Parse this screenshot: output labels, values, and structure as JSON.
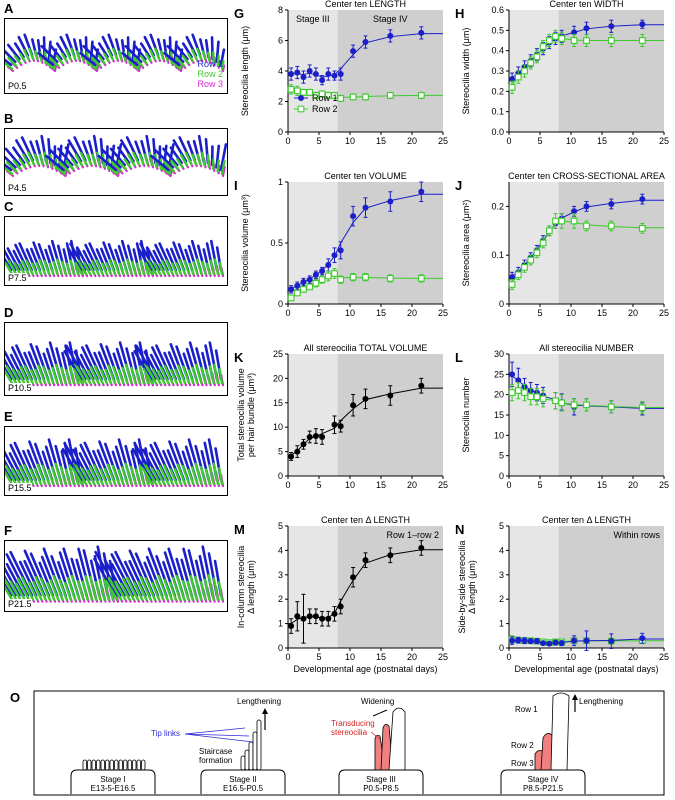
{
  "figure": {
    "left_panels": [
      {
        "letter": "A",
        "age": "P0.5",
        "legend": [
          "Row 1",
          "Row 2",
          "Row 3"
        ]
      },
      {
        "letter": "B",
        "age": "P4.5"
      },
      {
        "letter": "C",
        "age": "P7.5"
      },
      {
        "letter": "D",
        "age": "P10.5"
      },
      {
        "letter": "E",
        "age": "P15.5"
      },
      {
        "letter": "F",
        "age": "P21.5"
      }
    ],
    "colors": {
      "row1": "#1a1fc9",
      "row2": "#3ec92e",
      "row3": "#d42ad4",
      "stage3_shade": "#e6e6e6",
      "stage4_shade": "#cfcfcf",
      "tip_link": "#2b2bd6",
      "transducing": "#d61f1f",
      "stereocilia_fill": "#f08080"
    },
    "schematic": {
      "letter": "O",
      "stages": [
        {
          "name": "Stage I",
          "range": "E13-5-E16.5"
        },
        {
          "name": "Stage II",
          "range": "E16.5-P0.5"
        },
        {
          "name": "Stage III",
          "range": "P0.5-P8.5"
        },
        {
          "name": "Stage IV",
          "range": "P8.5-P21.5"
        }
      ],
      "labels": {
        "lengthening": "Lengthening",
        "tip_links": "Tip links",
        "staircase1": "Staircase",
        "staircase2": "formation",
        "widening": "Widening",
        "transducing1": "Transducing",
        "transducing2": "stereocilia",
        "row1": "Row 1",
        "row2": "Row 2",
        "row3": "Row 3",
        "lengthening2": "Lengthening"
      }
    },
    "x_axis_label": "Developmental age (postnatal days)"
  },
  "chart_data": [
    {
      "letter": "G",
      "type": "scatter",
      "title": "Center ten LENGTH",
      "ylabel": "Stereocilia length (μm)",
      "xlim": [
        0,
        25
      ],
      "ylim": [
        0,
        8
      ],
      "yticks": [
        0,
        2,
        4,
        6,
        8
      ],
      "xticks": [
        0,
        5,
        10,
        15,
        20,
        25
      ],
      "stage_labels": [
        "Stage III",
        "Stage IV"
      ],
      "legend": [
        "Row 1",
        "Row 2"
      ],
      "series": [
        {
          "name": "Row 1",
          "style": "filled",
          "color": "#1a1fc9",
          "x": [
            0.5,
            1.5,
            2.5,
            3.5,
            4.5,
            5.5,
            6.5,
            7.5,
            8.5,
            10.5,
            12.5,
            16.5,
            21.5
          ],
          "y": [
            3.8,
            3.9,
            3.6,
            4.0,
            3.8,
            3.4,
            3.8,
            3.7,
            3.8,
            5.3,
            5.9,
            6.3,
            6.5
          ],
          "err": [
            0.4,
            0.4,
            0.4,
            0.4,
            0.4,
            0.3,
            0.4,
            0.3,
            0.4,
            0.4,
            0.4,
            0.4,
            0.4
          ]
        },
        {
          "name": "Row 2",
          "style": "open",
          "color": "#3ec92e",
          "x": [
            0.5,
            1.5,
            2.5,
            3.5,
            4.5,
            5.5,
            6.5,
            7.5,
            8.5,
            10.5,
            12.5,
            16.5,
            21.5
          ],
          "y": [
            2.8,
            2.7,
            2.6,
            2.6,
            2.4,
            2.5,
            2.4,
            2.4,
            2.2,
            2.3,
            2.3,
            2.4,
            2.4
          ],
          "err": [
            0.3,
            0.3,
            0.2,
            0.2,
            0.2,
            0.2,
            0.2,
            0.2,
            0.2,
            0.2,
            0.2,
            0.2,
            0.2
          ]
        }
      ]
    },
    {
      "letter": "H",
      "type": "scatter",
      "title": "Center ten WIDTH",
      "ylabel": "Stereocilia width (μm)",
      "xlim": [
        0,
        25
      ],
      "ylim": [
        0,
        0.6
      ],
      "yticks": [
        0.0,
        0.1,
        0.2,
        0.3,
        0.4,
        0.5,
        0.6
      ],
      "xticks": [
        0,
        5,
        10,
        15,
        20,
        25
      ],
      "series": [
        {
          "name": "Row 1",
          "style": "filled",
          "color": "#1a1fc9",
          "x": [
            0.5,
            1.5,
            2.5,
            3.5,
            4.5,
            5.5,
            6.5,
            7.5,
            8.5,
            10.5,
            12.5,
            16.5,
            21.5
          ],
          "y": [
            0.26,
            0.29,
            0.32,
            0.35,
            0.38,
            0.41,
            0.44,
            0.46,
            0.47,
            0.49,
            0.51,
            0.52,
            0.53
          ],
          "err": [
            0.03,
            0.03,
            0.03,
            0.03,
            0.03,
            0.03,
            0.03,
            0.03,
            0.03,
            0.03,
            0.03,
            0.03,
            0.02
          ]
        },
        {
          "name": "Row 2",
          "style": "open",
          "color": "#3ec92e",
          "x": [
            0.5,
            1.5,
            2.5,
            3.5,
            4.5,
            5.5,
            6.5,
            7.5,
            8.5,
            10.5,
            12.5,
            16.5,
            21.5
          ],
          "y": [
            0.22,
            0.27,
            0.3,
            0.34,
            0.37,
            0.42,
            0.45,
            0.47,
            0.46,
            0.45,
            0.45,
            0.45,
            0.45
          ],
          "err": [
            0.03,
            0.03,
            0.03,
            0.03,
            0.03,
            0.03,
            0.03,
            0.03,
            0.03,
            0.03,
            0.03,
            0.03,
            0.03
          ]
        }
      ]
    },
    {
      "letter": "I",
      "type": "scatter",
      "title": "Center ten VOLUME",
      "ylabel": "Stereocilia volume (μm³)",
      "xlim": [
        0,
        25
      ],
      "ylim": [
        0,
        1.0
      ],
      "yticks": [
        0,
        0.5,
        1.0
      ],
      "xticks": [
        0,
        5,
        10,
        15,
        20,
        25
      ],
      "series": [
        {
          "name": "Row 1",
          "style": "filled",
          "color": "#1a1fc9",
          "x": [
            0.5,
            1.5,
            2.5,
            3.5,
            4.5,
            5.5,
            6.5,
            7.5,
            8.5,
            10.5,
            12.5,
            16.5,
            21.5
          ],
          "y": [
            0.12,
            0.15,
            0.18,
            0.2,
            0.24,
            0.27,
            0.32,
            0.4,
            0.44,
            0.72,
            0.79,
            0.84,
            0.92
          ],
          "err": [
            0.03,
            0.03,
            0.03,
            0.03,
            0.03,
            0.03,
            0.05,
            0.06,
            0.07,
            0.08,
            0.08,
            0.08,
            0.08
          ]
        },
        {
          "name": "Row 2",
          "style": "open",
          "color": "#3ec92e",
          "x": [
            0.5,
            1.5,
            2.5,
            3.5,
            4.5,
            5.5,
            6.5,
            7.5,
            8.5,
            10.5,
            12.5,
            16.5,
            21.5
          ],
          "y": [
            0.05,
            0.09,
            0.12,
            0.14,
            0.17,
            0.2,
            0.23,
            0.25,
            0.2,
            0.22,
            0.22,
            0.21,
            0.21
          ],
          "err": [
            0.02,
            0.02,
            0.02,
            0.02,
            0.03,
            0.03,
            0.04,
            0.04,
            0.03,
            0.03,
            0.03,
            0.03,
            0.03
          ]
        }
      ]
    },
    {
      "letter": "J",
      "type": "scatter",
      "title": "Center ten CROSS-SECTIONAL AREA",
      "ylabel": "Stereocilia area (μm²)",
      "xlim": [
        0,
        25
      ],
      "ylim": [
        0,
        0.25
      ],
      "yticks": [
        0,
        0.1,
        0.2
      ],
      "xticks": [
        0,
        5,
        10,
        15,
        20,
        25
      ],
      "series": [
        {
          "name": "Row 1",
          "style": "filled",
          "color": "#1a1fc9",
          "x": [
            0.5,
            1.5,
            2.5,
            3.5,
            4.5,
            5.5,
            6.5,
            7.5,
            8.5,
            10.5,
            12.5,
            16.5,
            21.5
          ],
          "y": [
            0.055,
            0.065,
            0.08,
            0.095,
            0.11,
            0.13,
            0.15,
            0.165,
            0.175,
            0.19,
            0.2,
            0.205,
            0.215
          ],
          "err": [
            0.01,
            0.01,
            0.01,
            0.01,
            0.01,
            0.01,
            0.01,
            0.01,
            0.01,
            0.01,
            0.01,
            0.01,
            0.01
          ]
        },
        {
          "name": "Row 2",
          "style": "open",
          "color": "#3ec92e",
          "x": [
            0.5,
            1.5,
            2.5,
            3.5,
            4.5,
            5.5,
            6.5,
            7.5,
            8.5,
            10.5,
            12.5,
            16.5,
            21.5
          ],
          "y": [
            0.04,
            0.06,
            0.075,
            0.09,
            0.105,
            0.125,
            0.15,
            0.17,
            0.17,
            0.17,
            0.16,
            0.16,
            0.155
          ],
          "err": [
            0.01,
            0.01,
            0.01,
            0.01,
            0.01,
            0.01,
            0.01,
            0.015,
            0.015,
            0.015,
            0.01,
            0.01,
            0.01
          ]
        }
      ]
    },
    {
      "letter": "K",
      "type": "scatter",
      "title": "All stereocilia TOTAL VOLUME",
      "ylabel": "Total stereocilia volume per hair bundle (μm³)",
      "ylabel_lines": [
        "Total stereocilia volume",
        "per hair bundle (μm³)"
      ],
      "xlim": [
        0,
        25
      ],
      "ylim": [
        0,
        25
      ],
      "yticks": [
        0,
        5,
        10,
        15,
        20,
        25
      ],
      "xticks": [
        0,
        5,
        10,
        15,
        20,
        25
      ],
      "series": [
        {
          "name": "All",
          "style": "filled",
          "color": "#000000",
          "x": [
            0.5,
            1.5,
            2.5,
            3.5,
            4.5,
            5.5,
            7.5,
            8.5,
            10.5,
            12.5,
            16.5,
            21.5
          ],
          "y": [
            4.0,
            5.0,
            6.5,
            8.0,
            8.2,
            8.0,
            10.5,
            10.2,
            14.5,
            15.8,
            16.5,
            18.5
          ],
          "err": [
            0.8,
            1.2,
            1.0,
            1.2,
            1.5,
            1.5,
            1.8,
            1.2,
            2.2,
            2.0,
            2.0,
            1.5
          ]
        }
      ]
    },
    {
      "letter": "L",
      "type": "scatter",
      "title": "All stereocilia NUMBER",
      "ylabel": "Stereocilia number",
      "xlim": [
        0,
        25
      ],
      "ylim": [
        0,
        30
      ],
      "yticks": [
        0,
        5,
        10,
        15,
        20,
        25,
        30
      ],
      "xticks": [
        0,
        5,
        10,
        15,
        20,
        25
      ],
      "series": [
        {
          "name": "Row 1",
          "style": "filled",
          "color": "#1a1fc9",
          "x": [
            0.5,
            1.5,
            2.5,
            3.5,
            4.5,
            5.5,
            7.5,
            8.5,
            10.5,
            12.5,
            16.5,
            21.5
          ],
          "y": [
            25.0,
            23.5,
            22.0,
            21.0,
            20.5,
            19.8,
            18.5,
            18.2,
            17.0,
            17.5,
            17.0,
            16.5
          ],
          "err": [
            3,
            3,
            2,
            2,
            2,
            2,
            2,
            2,
            2,
            1.5,
            1.5,
            1.5
          ]
        },
        {
          "name": "Row 2",
          "style": "open",
          "color": "#3ec92e",
          "x": [
            0.5,
            1.5,
            2.5,
            3.5,
            4.5,
            5.5,
            7.5,
            8.5,
            10.5,
            12.5,
            16.5,
            21.5
          ],
          "y": [
            20.5,
            21.0,
            20.5,
            19.5,
            19.5,
            19.0,
            18.5,
            18.0,
            17.5,
            17.5,
            17.0,
            16.8
          ],
          "err": [
            2,
            2,
            2,
            2,
            2,
            2,
            2,
            2,
            1.5,
            1.5,
            1.5,
            1.5
          ]
        }
      ]
    },
    {
      "letter": "M",
      "type": "scatter",
      "title": "Center ten Δ LENGTH",
      "annotation": "Row 1–row 2",
      "ylabel": "In-column stereocilia Δ length (μm)",
      "ylabel_lines": [
        "In-column stereocilia",
        "Δ length (μm)"
      ],
      "xlabel": "Developmental age (postnatal days)",
      "xlim": [
        0,
        25
      ],
      "ylim": [
        0,
        5
      ],
      "yticks": [
        0,
        1,
        2,
        3,
        4,
        5
      ],
      "xticks": [
        0,
        5,
        10,
        15,
        20,
        25
      ],
      "series": [
        {
          "name": "Row 1–row 2",
          "style": "filled",
          "color": "#000000",
          "x": [
            0.5,
            1.5,
            2.5,
            3.5,
            4.5,
            5.5,
            6.5,
            7.5,
            8.5,
            10.5,
            12.5,
            16.5,
            21.5
          ],
          "y": [
            0.9,
            1.3,
            1.2,
            1.3,
            1.3,
            1.2,
            1.2,
            1.4,
            1.7,
            2.9,
            3.6,
            3.8,
            4.1
          ],
          "err": [
            0.3,
            0.6,
            1.0,
            0.3,
            0.3,
            0.3,
            0.3,
            0.3,
            0.3,
            0.4,
            0.3,
            0.3,
            0.3
          ]
        }
      ]
    },
    {
      "letter": "N",
      "type": "scatter",
      "title": "Center ten Δ LENGTH",
      "annotation": "Within rows",
      "ylabel": "Side-by-side stereocilia Δ length (μm)",
      "ylabel_lines": [
        "Side-by-side stereocilia",
        "Δ length (μm)"
      ],
      "xlabel": "Developmental age (postnatal days)",
      "xlim": [
        0,
        25
      ],
      "ylim": [
        0,
        5
      ],
      "yticks": [
        0,
        1,
        2,
        3,
        4,
        5
      ],
      "xticks": [
        0,
        5,
        10,
        15,
        20,
        25
      ],
      "series": [
        {
          "name": "Row 2",
          "style": "open",
          "color": "#3ec92e",
          "x": [
            0.5,
            1.5,
            2.5,
            3.5,
            4.5,
            5.5,
            6.5,
            7.5,
            8.5,
            10.5,
            12.5,
            16.5,
            21.5
          ],
          "y": [
            0.35,
            0.32,
            0.3,
            0.3,
            0.28,
            0.25,
            0.22,
            0.25,
            0.25,
            0.3,
            0.3,
            0.28,
            0.3
          ],
          "err": [
            0.15,
            0.1,
            0.1,
            0.1,
            0.1,
            0.1,
            0.08,
            0.08,
            0.08,
            0.1,
            0.1,
            0.1,
            0.1
          ]
        },
        {
          "name": "Row 1",
          "style": "filled",
          "color": "#1a1fc9",
          "x": [
            0.5,
            1.5,
            2.5,
            3.5,
            4.5,
            5.5,
            6.5,
            7.5,
            8.5,
            10.5,
            12.5,
            16.5,
            21.5
          ],
          "y": [
            0.3,
            0.32,
            0.3,
            0.28,
            0.28,
            0.2,
            0.18,
            0.22,
            0.2,
            0.3,
            0.3,
            0.28,
            0.4
          ],
          "err": [
            0.15,
            0.12,
            0.12,
            0.1,
            0.1,
            0.08,
            0.08,
            0.1,
            0.1,
            0.2,
            0.4,
            0.3,
            0.2
          ]
        }
      ]
    }
  ]
}
